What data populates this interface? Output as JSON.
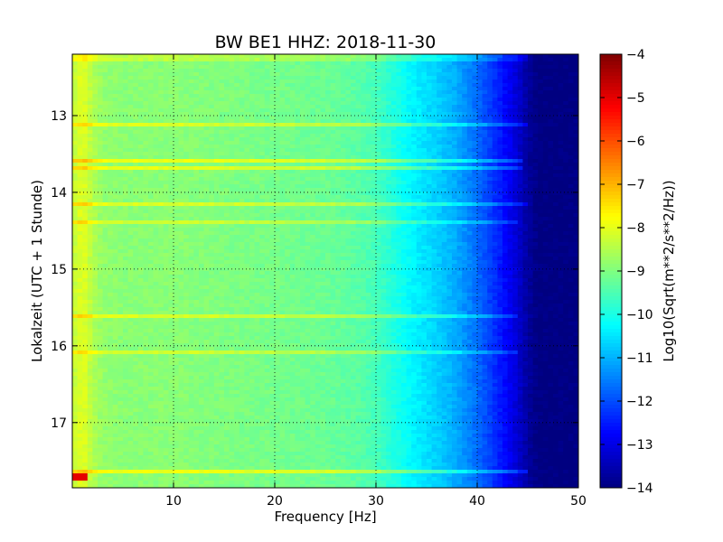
{
  "chart_data": {
    "type": "heatmap",
    "title": "BW BE1 HHZ: 2018-11-30",
    "xlabel": "Frequency [Hz]",
    "ylabel": "Lokalzeit (UTC + 1 Stunde)",
    "colorbar_label": "Log10(Sqrt(m**2/s**2/Hz))",
    "xlim": [
      0,
      50
    ],
    "ylim": [
      12.2,
      17.85
    ],
    "y_inverted": true,
    "grid": true,
    "x_ticks": [
      10,
      20,
      30,
      40,
      50
    ],
    "x_tick_labels": [
      "10",
      "20",
      "30",
      "40",
      "50"
    ],
    "y_ticks": [
      13,
      14,
      15,
      16,
      17
    ],
    "y_tick_labels": [
      "13",
      "14",
      "15",
      "16",
      "17"
    ],
    "color_range": [
      -14,
      -4
    ],
    "colormap": "jet",
    "colorbar_ticks": [
      -4,
      -5,
      -6,
      -7,
      -8,
      -9,
      -10,
      -11,
      -12,
      -13,
      -14
    ],
    "colorbar_tick_labels": [
      "−4",
      "−5",
      "−6",
      "−7",
      "−8",
      "−9",
      "−10",
      "−11",
      "−12",
      "−13",
      "−14"
    ],
    "frequency_profile": {
      "frequency_hz": [
        0,
        1,
        2,
        3,
        5,
        10,
        15,
        20,
        25,
        28,
        30,
        32,
        34,
        36,
        38,
        40,
        42,
        44,
        45,
        46,
        48,
        50
      ],
      "level_log10": [
        -8.4,
        -8.0,
        -8.5,
        -8.8,
        -8.9,
        -8.9,
        -9.0,
        -9.1,
        -9.2,
        -9.35,
        -9.55,
        -10.0,
        -10.4,
        -10.7,
        -11.1,
        -11.7,
        -12.4,
        -13.2,
        -13.7,
        -14.0,
        -14.0,
        -14.0
      ]
    },
    "bands": [
      {
        "time_h": 12.25,
        "max_freq_hz": 45,
        "level_boost": 0.5
      },
      {
        "time_h": 13.1,
        "max_freq_hz": 45,
        "level_boost": 0.8
      },
      {
        "time_h": 13.6,
        "max_freq_hz": 44.5,
        "level_boost": 1.0
      },
      {
        "time_h": 13.7,
        "max_freq_hz": 44.5,
        "level_boost": 0.9
      },
      {
        "time_h": 14.15,
        "max_freq_hz": 45,
        "level_boost": 0.8
      },
      {
        "time_h": 14.4,
        "max_freq_hz": 44,
        "level_boost": 0.7
      },
      {
        "time_h": 15.6,
        "max_freq_hz": 44,
        "level_boost": 0.8
      },
      {
        "time_h": 16.1,
        "max_freq_hz": 44,
        "level_boost": 0.7
      },
      {
        "time_h": 17.65,
        "max_freq_hz": 45,
        "level_boost": 1.0
      }
    ],
    "hotspot": {
      "time_h": 17.72,
      "freq_range_hz": [
        0.2,
        1.5
      ],
      "level_log10": -5.0
    }
  }
}
